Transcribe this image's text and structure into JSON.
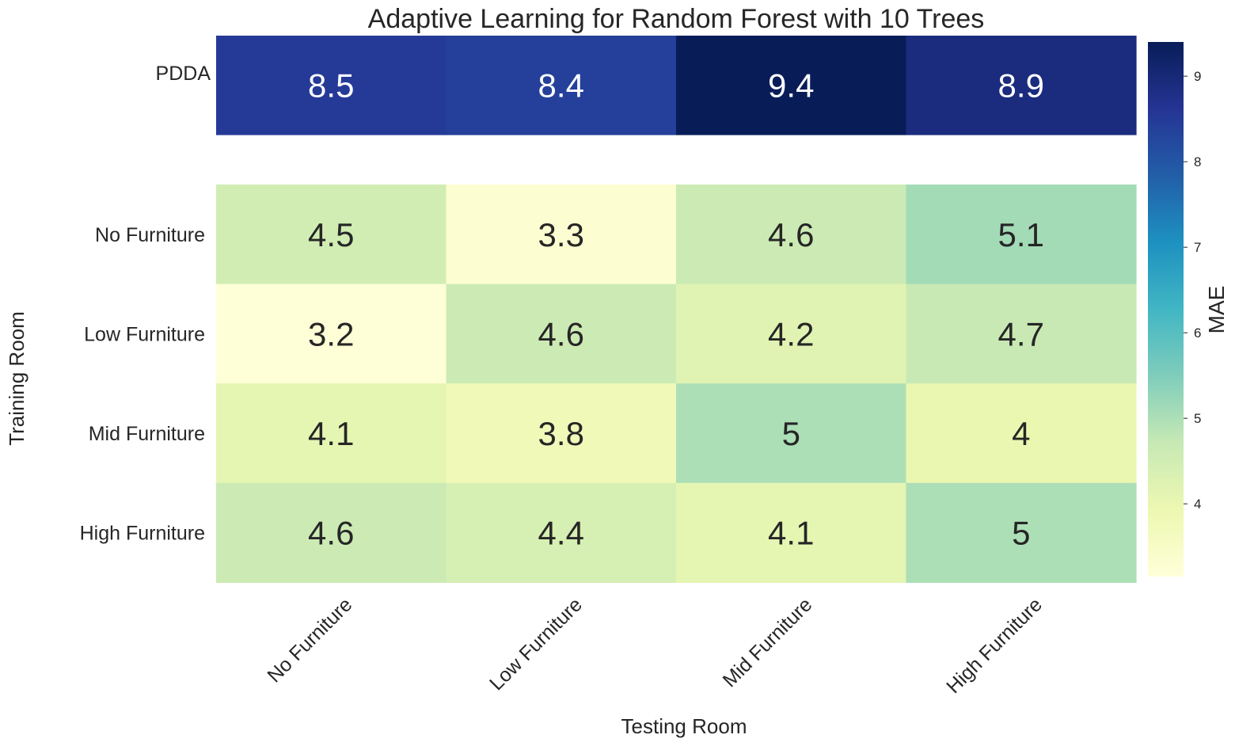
{
  "chart_data": {
    "type": "heatmap",
    "title": "Adaptive Learning for Random Forest with 10 Trees",
    "xlabel": "Testing Room",
    "ylabel": "Training Room",
    "x_categories": [
      "No Furniture",
      "Low Furniture",
      "Mid Furniture",
      "High Furniture"
    ],
    "top_panel": {
      "rows": [
        "PDDA"
      ],
      "values": [
        [
          8.5,
          8.4,
          9.4,
          8.9
        ]
      ],
      "labels": [
        [
          "8.5",
          "8.4",
          "9.4",
          "8.9"
        ]
      ]
    },
    "main_panel": {
      "rows": [
        "No Furniture",
        "Low Furniture",
        "Mid Furniture",
        "High Furniture"
      ],
      "values": [
        [
          4.5,
          3.3,
          4.6,
          5.1
        ],
        [
          3.2,
          4.6,
          4.2,
          4.7
        ],
        [
          4.1,
          3.8,
          5.0,
          4.0
        ],
        [
          4.6,
          4.4,
          4.1,
          5.0
        ]
      ],
      "labels": [
        [
          "4.5",
          "3.3",
          "4.6",
          "5.1"
        ],
        [
          "3.2",
          "4.6",
          "4.2",
          "4.7"
        ],
        [
          "4.1",
          "3.8",
          "5",
          "4"
        ],
        [
          "4.6",
          "4.4",
          "4.1",
          "5"
        ]
      ]
    },
    "colorbar": {
      "label": "MAE",
      "range": [
        3.15,
        9.4
      ],
      "ticks": [
        4,
        5,
        6,
        7,
        8,
        9
      ],
      "colormap": "YlGnBu",
      "colormap_stops": [
        "#ffffd9",
        "#edf8b1",
        "#c7e9b4",
        "#7fcdbb",
        "#41b6c4",
        "#1d91c0",
        "#225ea8",
        "#253494",
        "#081d58"
      ]
    },
    "grid": false
  }
}
